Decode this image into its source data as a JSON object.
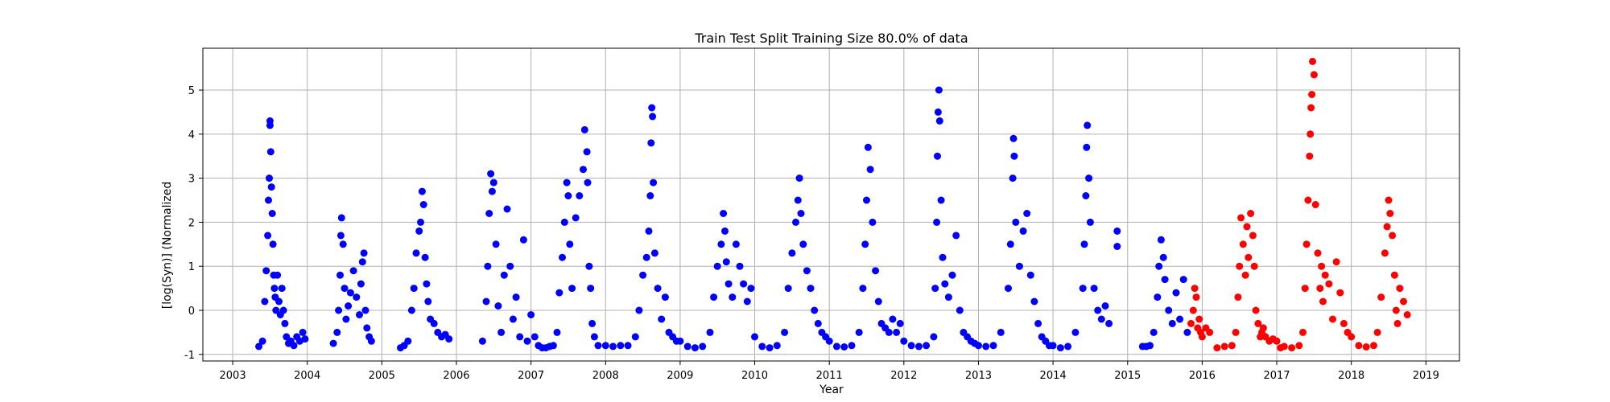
{
  "chart_data": {
    "type": "scatter",
    "title": "Train Test Split Training Size 80.0% of data",
    "xlabel": "Year",
    "ylabel": "[log(Syn)] (Normalized",
    "xlim": [
      2002.6,
      2019.45
    ],
    "ylim": [
      -1.15,
      5.95
    ],
    "x_ticks": [
      2003,
      2004,
      2005,
      2006,
      2007,
      2008,
      2009,
      2010,
      2011,
      2012,
      2013,
      2014,
      2015,
      2016,
      2017,
      2018,
      2019
    ],
    "y_ticks": [
      -1,
      0,
      1,
      2,
      3,
      4,
      5
    ],
    "grid": true,
    "legend": "none",
    "series": [
      {
        "color": "#0000ff",
        "x": [
          2003.35,
          2003.4,
          2003.43,
          2003.45,
          2003.47,
          2003.48,
          2003.49,
          2003.5,
          2003.5,
          2003.51,
          2003.52,
          2003.53,
          2003.54,
          2003.55,
          2003.56,
          2003.57,
          2003.58,
          2003.6,
          2003.62,
          2003.64,
          2003.66,
          2003.68,
          2003.7,
          2003.72,
          2003.75,
          2003.78,
          2003.82,
          2003.86,
          2003.9,
          2003.94,
          2003.97,
          2004.35,
          2004.4,
          2004.42,
          2004.44,
          2004.45,
          2004.46,
          2004.48,
          2004.5,
          2004.52,
          2004.55,
          2004.58,
          2004.62,
          2004.66,
          2004.7,
          2004.72,
          2004.74,
          2004.76,
          2004.78,
          2004.8,
          2004.83,
          2004.86,
          2005.25,
          2005.3,
          2005.35,
          2005.4,
          2005.43,
          2005.46,
          2005.5,
          2005.52,
          2005.54,
          2005.56,
          2005.58,
          2005.6,
          2005.62,
          2005.65,
          2005.7,
          2005.75,
          2005.8,
          2005.85,
          2005.9,
          2006.35,
          2006.4,
          2006.42,
          2006.44,
          2006.46,
          2006.48,
          2006.5,
          2006.53,
          2006.56,
          2006.6,
          2006.64,
          2006.68,
          2006.72,
          2006.76,
          2006.8,
          2006.85,
          2006.9,
          2006.95,
          2007.0,
          2007.05,
          2007.1,
          2007.15,
          2007.2,
          2007.25,
          2007.3,
          2007.35,
          2007.38,
          2007.42,
          2007.45,
          2007.48,
          2007.5,
          2007.52,
          2007.55,
          2007.6,
          2007.65,
          2007.7,
          2007.72,
          2007.75,
          2007.76,
          2007.78,
          2007.8,
          2007.82,
          2007.85,
          2007.9,
          2008.0,
          2008.1,
          2008.2,
          2008.3,
          2008.4,
          2008.45,
          2008.5,
          2008.55,
          2008.58,
          2008.6,
          2008.61,
          2008.62,
          2008.63,
          2008.64,
          2008.66,
          2008.7,
          2008.75,
          2008.8,
          2008.85,
          2008.9,
          2008.95,
          2009.0,
          2009.1,
          2009.2,
          2009.3,
          2009.4,
          2009.45,
          2009.5,
          2009.55,
          2009.58,
          2009.6,
          2009.62,
          2009.65,
          2009.7,
          2009.75,
          2009.8,
          2009.85,
          2009.9,
          2009.95,
          2010.0,
          2010.1,
          2010.2,
          2010.3,
          2010.4,
          2010.45,
          2010.5,
          2010.55,
          2010.58,
          2010.6,
          2010.62,
          2010.65,
          2010.7,
          2010.75,
          2010.8,
          2010.85,
          2010.9,
          2010.95,
          2011.0,
          2011.1,
          2011.2,
          2011.3,
          2011.4,
          2011.45,
          2011.48,
          2011.5,
          2011.52,
          2011.55,
          2011.58,
          2011.62,
          2011.66,
          2011.7,
          2011.75,
          2011.8,
          2011.85,
          2011.9,
          2011.95,
          2012.0,
          2012.1,
          2012.2,
          2012.3,
          2012.4,
          2012.42,
          2012.44,
          2012.45,
          2012.46,
          2012.47,
          2012.48,
          2012.5,
          2012.52,
          2012.55,
          2012.6,
          2012.65,
          2012.7,
          2012.75,
          2012.8,
          2012.85,
          2012.9,
          2012.95,
          2013.0,
          2013.1,
          2013.2,
          2013.3,
          2013.4,
          2013.43,
          2013.46,
          2013.47,
          2013.48,
          2013.5,
          2013.55,
          2013.6,
          2013.65,
          2013.7,
          2013.75,
          2013.8,
          2013.85,
          2013.9,
          2013.95,
          2014.0,
          2014.1,
          2014.2,
          2014.3,
          2014.4,
          2014.42,
          2014.44,
          2014.45,
          2014.46,
          2014.48,
          2014.5,
          2014.55,
          2014.6,
          2014.65,
          2014.7,
          2014.75,
          2014.86,
          2014.86,
          2015.2,
          2015.25,
          2015.3,
          2015.35,
          2015.4,
          2015.42,
          2015.45,
          2015.48,
          2015.5,
          2015.55,
          2015.6,
          2015.65,
          2015.7,
          2015.75,
          2015.8
        ],
        "y": [
          -0.82,
          -0.7,
          0.2,
          0.9,
          1.7,
          2.5,
          3.0,
          4.3,
          4.2,
          3.6,
          2.8,
          2.2,
          1.5,
          0.8,
          0.5,
          0.3,
          0.0,
          0.8,
          0.2,
          -0.1,
          0.5,
          0.0,
          -0.3,
          -0.6,
          -0.75,
          -0.7,
          -0.8,
          -0.6,
          -0.7,
          -0.5,
          -0.65,
          -0.75,
          -0.5,
          0.0,
          0.8,
          1.7,
          2.1,
          1.5,
          0.5,
          -0.2,
          0.1,
          0.4,
          0.9,
          0.3,
          -0.1,
          0.6,
          1.1,
          1.3,
          0.0,
          -0.4,
          -0.6,
          -0.7,
          -0.85,
          -0.8,
          -0.7,
          0.0,
          0.5,
          1.3,
          1.8,
          2.0,
          2.7,
          2.4,
          1.2,
          0.6,
          0.2,
          -0.2,
          -0.3,
          -0.5,
          -0.6,
          -0.55,
          -0.65,
          -0.7,
          0.2,
          1.0,
          2.2,
          3.1,
          2.7,
          2.9,
          1.5,
          0.1,
          -0.5,
          0.8,
          2.3,
          1.0,
          -0.2,
          0.3,
          -0.6,
          1.6,
          -0.7,
          -0.1,
          -0.6,
          -0.8,
          -0.85,
          -0.85,
          -0.82,
          -0.8,
          -0.5,
          0.4,
          1.2,
          2.0,
          2.9,
          2.6,
          1.5,
          0.5,
          2.1,
          2.6,
          3.2,
          4.1,
          3.6,
          2.9,
          1.0,
          0.5,
          -0.3,
          -0.6,
          -0.8,
          -0.8,
          -0.82,
          -0.8,
          -0.8,
          -0.6,
          0.0,
          0.8,
          1.2,
          1.8,
          2.6,
          3.8,
          4.6,
          4.4,
          2.9,
          1.3,
          0.5,
          -0.2,
          0.3,
          -0.5,
          -0.6,
          -0.7,
          -0.7,
          -0.82,
          -0.85,
          -0.82,
          -0.5,
          0.3,
          1.0,
          1.5,
          2.2,
          1.8,
          1.1,
          0.6,
          0.3,
          1.5,
          1.0,
          0.6,
          0.2,
          0.5,
          -0.6,
          -0.82,
          -0.85,
          -0.8,
          -0.5,
          0.5,
          1.3,
          2.0,
          2.5,
          3.0,
          2.2,
          1.5,
          0.9,
          0.5,
          0.0,
          -0.3,
          -0.5,
          -0.6,
          -0.7,
          -0.82,
          -0.83,
          -0.8,
          -0.5,
          0.5,
          1.5,
          2.5,
          3.7,
          3.2,
          2.0,
          0.9,
          0.2,
          -0.3,
          -0.4,
          -0.5,
          -0.2,
          -0.5,
          -0.3,
          -0.7,
          -0.8,
          -0.82,
          -0.8,
          -0.6,
          0.5,
          2.0,
          3.5,
          4.5,
          5.0,
          4.3,
          2.5,
          1.2,
          0.6,
          0.3,
          0.8,
          1.7,
          0.0,
          -0.5,
          -0.6,
          -0.7,
          -0.75,
          -0.8,
          -0.82,
          -0.8,
          -0.5,
          0.5,
          1.5,
          3.0,
          3.9,
          3.5,
          2.0,
          1.0,
          1.8,
          2.2,
          0.8,
          0.2,
          -0.3,
          -0.6,
          -0.7,
          -0.8,
          -0.8,
          -0.85,
          -0.82,
          -0.5,
          0.5,
          1.5,
          2.6,
          3.7,
          4.2,
          3.0,
          2.0,
          0.5,
          0.0,
          -0.2,
          0.1,
          -0.3,
          1.8,
          1.45,
          -0.82,
          -0.82,
          -0.8,
          -0.5,
          0.3,
          1.0,
          1.6,
          1.2,
          0.7,
          0.0,
          -0.3,
          0.4,
          -0.2,
          0.7,
          -0.5
        ]
      },
      {
        "color": "#ff0000",
        "x": [
          2015.85,
          2015.88,
          2015.9,
          2015.92,
          2015.94,
          2015.96,
          2015.98,
          2016.0,
          2016.05,
          2016.1,
          2016.2,
          2016.3,
          2016.4,
          2016.45,
          2016.48,
          2016.5,
          2016.52,
          2016.55,
          2016.58,
          2016.6,
          2016.62,
          2016.65,
          2016.68,
          2016.7,
          2016.72,
          2016.75,
          2016.78,
          2016.8,
          2016.82,
          2016.85,
          2016.9,
          2016.95,
          2017.0,
          2017.05,
          2017.1,
          2017.2,
          2017.3,
          2017.35,
          2017.38,
          2017.4,
          2017.42,
          2017.44,
          2017.45,
          2017.46,
          2017.47,
          2017.48,
          2017.5,
          2017.52,
          2017.55,
          2017.58,
          2017.6,
          2017.62,
          2017.65,
          2017.7,
          2017.75,
          2017.8,
          2017.85,
          2017.9,
          2017.95,
          2018.0,
          2018.1,
          2018.2,
          2018.3,
          2018.35,
          2018.4,
          2018.45,
          2018.48,
          2018.5,
          2018.52,
          2018.55,
          2018.58,
          2018.6,
          2018.62,
          2018.65,
          2018.7,
          2018.75
        ],
        "y": [
          -0.3,
          0.0,
          0.5,
          0.3,
          -0.4,
          -0.2,
          -0.5,
          -0.6,
          -0.4,
          -0.5,
          -0.85,
          -0.82,
          -0.8,
          -0.5,
          0.3,
          1.0,
          2.1,
          1.5,
          0.8,
          1.9,
          1.2,
          2.2,
          1.7,
          1.0,
          0.0,
          -0.3,
          -0.6,
          -0.5,
          -0.4,
          -0.6,
          -0.7,
          -0.65,
          -0.7,
          -0.85,
          -0.82,
          -0.85,
          -0.8,
          -0.5,
          0.5,
          1.5,
          2.5,
          3.5,
          4.0,
          4.6,
          4.9,
          5.65,
          5.35,
          2.4,
          1.3,
          0.5,
          1.0,
          0.2,
          0.8,
          0.6,
          -0.2,
          1.1,
          0.4,
          -0.3,
          -0.5,
          -0.6,
          -0.8,
          -0.83,
          -0.8,
          -0.5,
          0.3,
          1.3,
          1.9,
          2.5,
          2.2,
          1.7,
          0.8,
          0.0,
          -0.3,
          0.5,
          0.2,
          -0.1
        ]
      }
    ]
  }
}
